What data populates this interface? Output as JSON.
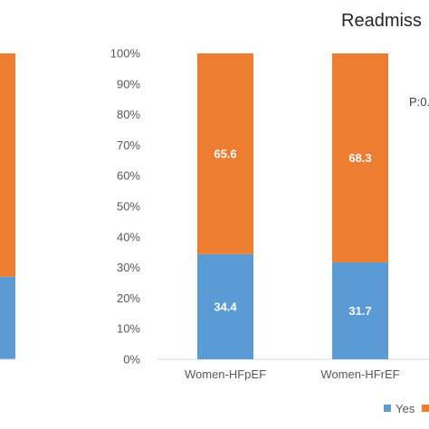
{
  "chart_data": {
    "type": "bar",
    "stacked": true,
    "percent": true,
    "title": "Readmiss",
    "annotation": "P:0.",
    "ylim": [
      0,
      100
    ],
    "y_ticks": [
      "0%",
      "10%",
      "20%",
      "30%",
      "40%",
      "50%",
      "60%",
      "70%",
      "80%",
      "90%",
      "100%"
    ],
    "categories": [
      "Women-HFpEF",
      "Women-HFrEF"
    ],
    "series": [
      {
        "name": "Yes",
        "values": [
          34.4,
          31.7
        ],
        "color": "#5b9bd5"
      },
      {
        "name": "",
        "values": [
          65.6,
          68.3
        ],
        "color": "#ed7d31"
      }
    ],
    "partial_left_bar": {
      "values": [
        27,
        73
      ]
    },
    "grid": false,
    "legend": "bottom-right"
  }
}
